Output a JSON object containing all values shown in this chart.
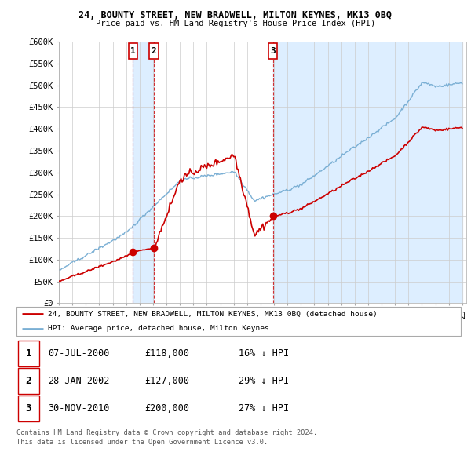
{
  "title": "24, BOUNTY STREET, NEW BRADWELL, MILTON KEYNES, MK13 0BQ",
  "subtitle": "Price paid vs. HM Land Registry's House Price Index (HPI)",
  "ylabel_ticks": [
    "£0",
    "£50K",
    "£100K",
    "£150K",
    "£200K",
    "£250K",
    "£300K",
    "£350K",
    "£400K",
    "£450K",
    "£500K",
    "£550K",
    "£600K"
  ],
  "ylim": [
    0,
    600000
  ],
  "yticks": [
    0,
    50000,
    100000,
    150000,
    200000,
    250000,
    300000,
    350000,
    400000,
    450000,
    500000,
    550000,
    600000
  ],
  "sale_prices": [
    118000,
    127000,
    200000
  ],
  "sale_labels": [
    "1",
    "2",
    "3"
  ],
  "legend_red": "24, BOUNTY STREET, NEW BRADWELL, MILTON KEYNES, MK13 0BQ (detached house)",
  "legend_blue": "HPI: Average price, detached house, Milton Keynes",
  "table_rows": [
    [
      "1",
      "07-JUL-2000",
      "£118,000",
      "16% ↓ HPI"
    ],
    [
      "2",
      "28-JAN-2002",
      "£127,000",
      "29% ↓ HPI"
    ],
    [
      "3",
      "30-NOV-2010",
      "£200,000",
      "27% ↓ HPI"
    ]
  ],
  "footnote1": "Contains HM Land Registry data © Crown copyright and database right 2024.",
  "footnote2": "This data is licensed under the Open Government Licence v3.0.",
  "red_color": "#cc0000",
  "blue_color": "#7aafd4",
  "shade_color": "#ddeeff",
  "vline_color": "#cc0000",
  "grid_color": "#cccccc",
  "bg_color": "#ffffff"
}
